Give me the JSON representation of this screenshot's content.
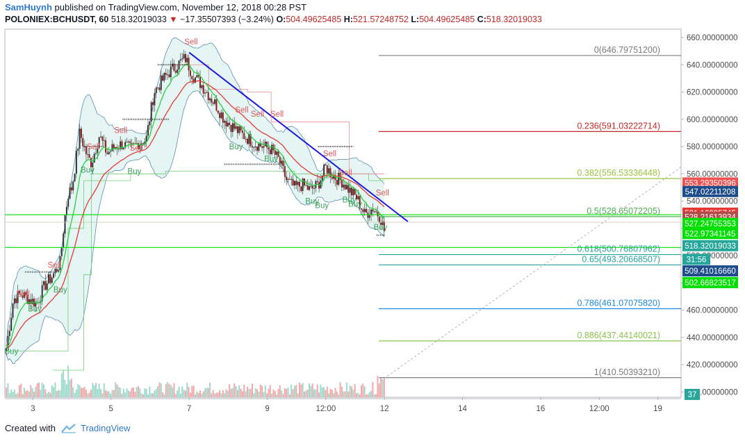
{
  "header": {
    "author": "SamHuynh",
    "published": "published on TradingView.com, November 12, 2018 00:28 PST",
    "symbol": "POLONIEX:BCHUSDT, 60",
    "last": "518.32019033",
    "arrow": "▼",
    "change": "−17.35507393 (−3.24%)",
    "o_label": "O:",
    "o_value": "504.49625485",
    "h_label": "H:",
    "h_value": "521.57248752",
    "l_label": "L:",
    "l_value": "504.49625485",
    "c_label": "C:",
    "c_value": "518.32019033"
  },
  "footer": {
    "created_with": "Created with",
    "brand": "TradingView"
  },
  "colors": {
    "up": "#53b987",
    "down": "#eb4d5c",
    "ema_fast": "#26d03a",
    "ema_slow": "#e53935",
    "band_fill": "#dff3f1",
    "band_line": "#5b8db5",
    "trend_line": "#1a1adf",
    "green_line": "#00e000"
  },
  "chart_data": {
    "type": "candlestick",
    "y_axis": {
      "min": 394,
      "max": 662,
      "ticks": [
        "660.00000000",
        "640.00000000",
        "620.00000000",
        "600.00000000",
        "580.00000000",
        "560.00000000",
        "540.00000000",
        "520.00000000",
        "500.00000000",
        "480.00000000",
        "460.00000000",
        "440.00000000",
        "420.00000000",
        "400.00000000"
      ]
    },
    "x_axis": {
      "range_days": [
        2.3,
        19.6
      ],
      "ticks": [
        {
          "label": "3",
          "d": 3
        },
        {
          "label": "5",
          "d": 5
        },
        {
          "label": "7",
          "d": 7
        },
        {
          "label": "9",
          "d": 9
        },
        {
          "label": "12:00",
          "d": 10.5
        },
        {
          "label": "12",
          "d": 12
        },
        {
          "label": "14",
          "d": 14
        },
        {
          "label": "16",
          "d": 16
        },
        {
          "label": "12:00",
          "d": 17.5
        },
        {
          "label": "19",
          "d": 19
        }
      ]
    },
    "price_path": [
      [
        2.3,
        428
      ],
      [
        2.5,
        468
      ],
      [
        2.7,
        472
      ],
      [
        2.9,
        468
      ],
      [
        3.1,
        465
      ],
      [
        3.3,
        478
      ],
      [
        3.5,
        485
      ],
      [
        3.7,
        495
      ],
      [
        3.8,
        525
      ],
      [
        3.9,
        545
      ],
      [
        4.0,
        550
      ],
      [
        4.2,
        590
      ],
      [
        4.4,
        572
      ],
      [
        4.5,
        568
      ],
      [
        4.7,
        588
      ],
      [
        4.9,
        575
      ],
      [
        5.1,
        580
      ],
      [
        5.3,
        582
      ],
      [
        5.5,
        578
      ],
      [
        5.7,
        583
      ],
      [
        5.9,
        585
      ],
      [
        6.1,
        620
      ],
      [
        6.3,
        628
      ],
      [
        6.5,
        635
      ],
      [
        6.7,
        640
      ],
      [
        6.9,
        645
      ],
      [
        7.1,
        632
      ],
      [
        7.3,
        626
      ],
      [
        7.5,
        618
      ],
      [
        7.7,
        610
      ],
      [
        7.9,
        600
      ],
      [
        8.1,
        595
      ],
      [
        8.3,
        590
      ],
      [
        8.5,
        586
      ],
      [
        8.7,
        582
      ],
      [
        8.9,
        580
      ],
      [
        9.1,
        578
      ],
      [
        9.3,
        570
      ],
      [
        9.5,
        555
      ],
      [
        9.7,
        550
      ],
      [
        9.9,
        552
      ],
      [
        10.1,
        548
      ],
      [
        10.3,
        552
      ],
      [
        10.5,
        565
      ],
      [
        10.7,
        558
      ],
      [
        10.9,
        555
      ],
      [
        11.1,
        548
      ],
      [
        11.3,
        542
      ],
      [
        11.5,
        530
      ],
      [
        11.7,
        535
      ],
      [
        11.9,
        528
      ],
      [
        12.0,
        518
      ]
    ],
    "fib_levels": [
      {
        "label": "0(646.79751200)",
        "value": 646.797512,
        "color": "#7b7b7b"
      },
      {
        "label": "0.236(591.03222714)",
        "value": 591.03222714,
        "color": "#c62828"
      },
      {
        "label": "0.382(556.53336448)",
        "value": 556.53336448,
        "color": "#9bc53d"
      },
      {
        "label": "0.5(528.65072205)",
        "value": 528.65072205,
        "color": "#4caf50"
      },
      {
        "label": "0.618(500.76807962)",
        "value": 500.76807962,
        "color": "#26a69a"
      },
      {
        "label": "0.65(493.20668507)",
        "value": 493.20668507,
        "color": "#26a69a"
      },
      {
        "label": "0.786(461.07075820)",
        "value": 461.0707582,
        "color": "#1e88e5"
      },
      {
        "label": "0.886(437.44140021)",
        "value": 437.44140021,
        "color": "#8bc34a"
      },
      {
        "label": "1(410.50393210)",
        "value": 410.5039321,
        "color": "#7b7b7b"
      }
    ],
    "trend_line": [
      [
        7.0,
        649
      ],
      [
        12.6,
        525
      ]
    ],
    "horizontal_lines": [
      530,
      506
    ],
    "signals": [
      {
        "text": "Sell",
        "d": 2.75,
        "v": 470
      },
      {
        "text": "Buy",
        "d": 3.05,
        "v": 459
      },
      {
        "text": "Sell",
        "d": 3.55,
        "v": 491
      },
      {
        "text": "Buy",
        "d": 3.7,
        "v": 473
      },
      {
        "text": "Sell",
        "d": 4.55,
        "v": 578
      },
      {
        "text": "Buy",
        "d": 4.4,
        "v": 561
      },
      {
        "text": "Sell",
        "d": 5.25,
        "v": 590
      },
      {
        "text": "Sell",
        "d": 5.65,
        "v": 577
      },
      {
        "text": "Buy",
        "d": 5.6,
        "v": 560
      },
      {
        "text": "Sell",
        "d": 7.05,
        "v": 655
      },
      {
        "text": "Sell",
        "d": 8.35,
        "v": 605
      },
      {
        "text": "Sell",
        "d": 8.75,
        "v": 602
      },
      {
        "text": "Sell",
        "d": 9.25,
        "v": 602
      },
      {
        "text": "Buy",
        "d": 8.2,
        "v": 578
      },
      {
        "text": "Buy",
        "d": 9.1,
        "v": 569
      },
      {
        "text": "Buy",
        "d": 10.15,
        "v": 538
      },
      {
        "text": "Sell",
        "d": 10.6,
        "v": 573
      },
      {
        "text": "Sell",
        "d": 11.0,
        "v": 559
      },
      {
        "text": "Buy",
        "d": 10.4,
        "v": 535
      },
      {
        "text": "Buy",
        "d": 11.1,
        "v": 539
      },
      {
        "text": "Buy",
        "d": 11.25,
        "v": 536
      },
      {
        "text": "Sell",
        "d": 11.95,
        "v": 544
      },
      {
        "text": "Buy",
        "d": 11.9,
        "v": 519
      },
      {
        "text": "Buy",
        "d": 2.45,
        "v": 428
      }
    ],
    "price_labels": [
      {
        "text": "553.29350396",
        "v": 553.2935,
        "bg": "#ef5350",
        "fg": "#ffffff"
      },
      {
        "text": "547.02211208",
        "v": 547.0221,
        "bg": "#1e4d8c",
        "fg": "#ffffff"
      },
      {
        "text": "531.16935745",
        "v": 531.1694,
        "bg": "#e53935",
        "fg": "#ffffff"
      },
      {
        "text": "528.21613934",
        "v": 528.2161,
        "bg": "#b54a4a",
        "fg": "#ffffff"
      },
      {
        "text": "527.24755353",
        "v": 523.6,
        "bg": "#00e000",
        "fg": "#ffffff"
      },
      {
        "text": "522.97341145",
        "v": 516.2,
        "bg": "#00e000",
        "fg": "#ffffff"
      },
      {
        "text": "518.32019033",
        "v": 507.3,
        "bg": "#26a69a",
        "fg": "#ffffff"
      },
      {
        "text": "31:56",
        "v": 497.3,
        "bg": "#26a69a",
        "fg": "#ffffff"
      },
      {
        "text": "509.41016660",
        "v": 488.8,
        "bg": "#1e4d8c",
        "fg": "#ffffff"
      },
      {
        "text": "502.66823517",
        "v": 480.2,
        "bg": "#00e000",
        "fg": "#ffffff"
      },
      {
        "text": "37",
        "v": 398.2,
        "bg": "#26a69a",
        "fg": "#ffffff"
      }
    ]
  }
}
